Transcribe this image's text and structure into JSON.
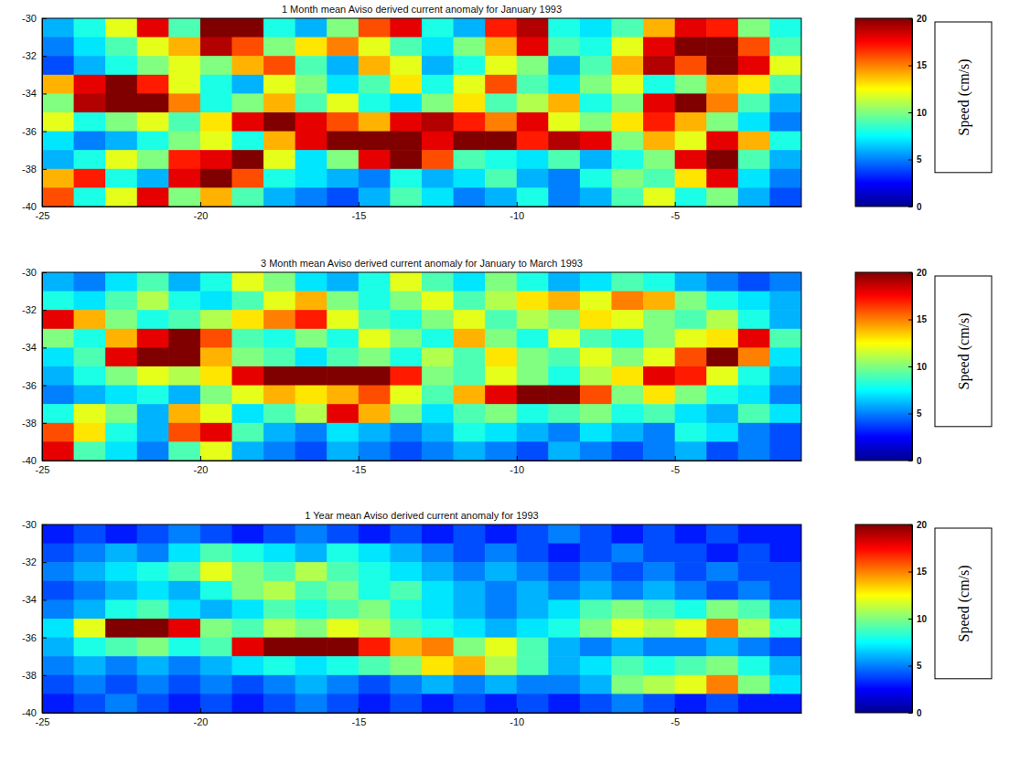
{
  "chart_data": [
    {
      "type": "heatmap",
      "title": "1 Month mean Aviso derived current anomaly for January 1993",
      "x": [
        -24.5,
        -23.5,
        -22.5,
        -21.5,
        -20.5,
        -19.5,
        -18.5,
        -17.5,
        -16.5,
        -15.5,
        -14.5,
        -13.5,
        -12.5,
        -11.5,
        -10.5,
        -9.5,
        -8.5,
        -7.5,
        -6.5,
        -5.5,
        -4.5,
        -3.5,
        -2.5,
        -1.5
      ],
      "y": [
        -30.5,
        -31.5,
        -32.5,
        -33.5,
        -34.5,
        -35.5,
        -36.5,
        -37.5,
        -38.5,
        -39.5
      ],
      "values": [
        [
          6,
          8,
          12,
          18,
          9,
          20,
          20,
          8,
          6,
          10,
          16,
          18,
          8,
          6,
          17,
          19,
          8,
          7,
          9,
          14,
          18,
          17,
          10,
          8
        ],
        [
          5,
          7,
          9,
          12,
          14,
          19,
          16,
          10,
          13,
          15,
          12,
          9,
          7,
          10,
          14,
          18,
          9,
          8,
          12,
          18,
          20,
          20,
          16,
          9
        ],
        [
          4,
          6,
          8,
          10,
          12,
          10,
          14,
          16,
          9,
          6,
          14,
          12,
          6,
          8,
          12,
          10,
          6,
          9,
          14,
          19,
          16,
          20,
          18,
          12
        ],
        [
          14,
          18,
          20,
          17,
          12,
          8,
          6,
          12,
          10,
          7,
          9,
          13,
          8,
          12,
          16,
          9,
          7,
          10,
          12,
          8,
          10,
          14,
          13,
          9
        ],
        [
          10,
          19,
          20,
          20,
          15,
          8,
          10,
          14,
          9,
          12,
          8,
          7,
          10,
          13,
          9,
          11,
          14,
          8,
          10,
          18,
          20,
          15,
          9,
          6
        ],
        [
          12,
          8,
          10,
          12,
          9,
          13,
          18,
          20,
          18,
          16,
          14,
          18,
          19,
          17,
          15,
          18,
          12,
          10,
          13,
          17,
          14,
          10,
          7,
          5
        ],
        [
          7,
          5,
          6,
          8,
          10,
          12,
          8,
          14,
          18,
          20,
          20,
          20,
          18,
          20,
          20,
          17,
          19,
          18,
          10,
          14,
          12,
          18,
          14,
          8
        ],
        [
          6,
          8,
          12,
          10,
          17,
          18,
          20,
          12,
          7,
          10,
          18,
          20,
          16,
          9,
          8,
          7,
          9,
          6,
          8,
          10,
          18,
          20,
          9,
          6
        ],
        [
          14,
          17,
          8,
          6,
          18,
          20,
          16,
          8,
          7,
          6,
          5,
          8,
          6,
          7,
          9,
          6,
          5,
          8,
          10,
          9,
          13,
          18,
          7,
          5
        ],
        [
          16,
          8,
          12,
          18,
          10,
          14,
          9,
          6,
          5,
          4,
          6,
          9,
          7,
          5,
          6,
          8,
          5,
          6,
          9,
          12,
          8,
          10,
          6,
          4
        ]
      ],
      "xlim": [
        -25,
        -1
      ],
      "ylim": [
        -40,
        -30
      ],
      "xticks": [
        -25,
        -20,
        -15,
        -10,
        -5
      ],
      "yticks": [
        -40,
        -38,
        -36,
        -34,
        -32,
        -30
      ],
      "zlim": [
        0,
        20
      ],
      "zticks": [
        0,
        5,
        10,
        15,
        20
      ],
      "zlabel": "Speed (cm/s)"
    },
    {
      "type": "heatmap",
      "title": "3 Month mean Aviso derived current anomaly for January to March 1993",
      "x": [
        -24.5,
        -23.5,
        -22.5,
        -21.5,
        -20.5,
        -19.5,
        -18.5,
        -17.5,
        -16.5,
        -15.5,
        -14.5,
        -13.5,
        -12.5,
        -11.5,
        -10.5,
        -9.5,
        -8.5,
        -7.5,
        -6.5,
        -5.5,
        -4.5,
        -3.5,
        -2.5,
        -1.5
      ],
      "y": [
        -30.5,
        -31.5,
        -32.5,
        -33.5,
        -34.5,
        -35.5,
        -36.5,
        -37.5,
        -38.5,
        -39.5
      ],
      "values": [
        [
          6,
          5,
          7,
          9,
          6,
          8,
          12,
          10,
          7,
          6,
          8,
          12,
          9,
          7,
          10,
          8,
          6,
          7,
          9,
          8,
          6,
          5,
          4,
          5
        ],
        [
          8,
          7,
          9,
          11,
          8,
          7,
          9,
          12,
          14,
          10,
          8,
          10,
          12,
          9,
          11,
          13,
          14,
          12,
          15,
          14,
          10,
          8,
          7,
          6
        ],
        [
          18,
          14,
          10,
          8,
          9,
          11,
          13,
          15,
          17,
          12,
          9,
          8,
          10,
          12,
          9,
          11,
          10,
          13,
          12,
          10,
          9,
          11,
          8,
          6
        ],
        [
          10,
          8,
          14,
          18,
          20,
          16,
          9,
          8,
          10,
          8,
          12,
          10,
          8,
          14,
          10,
          8,
          12,
          9,
          8,
          10,
          12,
          13,
          18,
          9
        ],
        [
          7,
          9,
          18,
          20,
          20,
          14,
          10,
          9,
          7,
          9,
          10,
          8,
          11,
          9,
          13,
          10,
          9,
          12,
          10,
          12,
          16,
          20,
          15,
          7
        ],
        [
          6,
          8,
          10,
          12,
          11,
          13,
          18,
          20,
          20,
          20,
          20,
          17,
          10,
          9,
          12,
          10,
          8,
          11,
          13,
          18,
          17,
          12,
          8,
          6
        ],
        [
          5,
          6,
          7,
          8,
          6,
          10,
          12,
          14,
          13,
          14,
          16,
          12,
          9,
          14,
          18,
          20,
          20,
          16,
          10,
          13,
          10,
          8,
          7,
          5
        ],
        [
          8,
          12,
          10,
          6,
          14,
          12,
          7,
          9,
          11,
          18,
          14,
          10,
          7,
          9,
          10,
          8,
          9,
          10,
          8,
          9,
          7,
          6,
          9,
          7
        ],
        [
          16,
          13,
          8,
          6,
          16,
          18,
          9,
          6,
          5,
          7,
          6,
          5,
          6,
          8,
          7,
          6,
          5,
          7,
          6,
          5,
          8,
          7,
          5,
          4
        ],
        [
          18,
          9,
          7,
          5,
          9,
          12,
          6,
          5,
          4,
          6,
          5,
          4,
          5,
          6,
          5,
          4,
          6,
          5,
          4,
          5,
          6,
          4,
          5,
          4
        ]
      ],
      "xlim": [
        -25,
        -1
      ],
      "ylim": [
        -40,
        -30
      ],
      "xticks": [
        -25,
        -20,
        -15,
        -10,
        -5
      ],
      "yticks": [
        -40,
        -38,
        -36,
        -34,
        -32,
        -30
      ],
      "zlim": [
        0,
        20
      ],
      "zticks": [
        0,
        5,
        10,
        15,
        20
      ],
      "zlabel": "Speed (cm/s)"
    },
    {
      "type": "heatmap",
      "title": "1 Year mean Aviso derived current anomaly for 1993",
      "x": [
        -24.5,
        -23.5,
        -22.5,
        -21.5,
        -20.5,
        -19.5,
        -18.5,
        -17.5,
        -16.5,
        -15.5,
        -14.5,
        -13.5,
        -12.5,
        -11.5,
        -10.5,
        -9.5,
        -8.5,
        -7.5,
        -6.5,
        -5.5,
        -4.5,
        -3.5,
        -2.5,
        -1.5
      ],
      "y": [
        -30.5,
        -31.5,
        -32.5,
        -33.5,
        -34.5,
        -35.5,
        -36.5,
        -37.5,
        -38.5,
        -39.5
      ],
      "values": [
        [
          3,
          4,
          3,
          4,
          5,
          4,
          3,
          4,
          5,
          4,
          3,
          4,
          3,
          4,
          3,
          4,
          5,
          4,
          3,
          4,
          3,
          4,
          3,
          3
        ],
        [
          4,
          5,
          6,
          5,
          7,
          9,
          8,
          7,
          6,
          8,
          7,
          6,
          5,
          4,
          5,
          4,
          3,
          4,
          5,
          4,
          4,
          3,
          4,
          3
        ],
        [
          5,
          6,
          7,
          8,
          9,
          12,
          10,
          9,
          11,
          9,
          8,
          7,
          6,
          5,
          6,
          5,
          4,
          5,
          4,
          5,
          4,
          5,
          4,
          4
        ],
        [
          4,
          5,
          6,
          7,
          6,
          8,
          10,
          11,
          9,
          10,
          8,
          9,
          7,
          6,
          5,
          6,
          5,
          6,
          5,
          6,
          5,
          4,
          5,
          4
        ],
        [
          5,
          6,
          8,
          9,
          7,
          6,
          7,
          9,
          8,
          9,
          10,
          8,
          7,
          6,
          5,
          6,
          7,
          9,
          10,
          9,
          8,
          10,
          9,
          6
        ],
        [
          7,
          12,
          20,
          20,
          18,
          10,
          9,
          11,
          10,
          12,
          11,
          9,
          8,
          7,
          6,
          7,
          8,
          10,
          12,
          11,
          12,
          15,
          11,
          8
        ],
        [
          6,
          8,
          9,
          10,
          8,
          9,
          18,
          20,
          20,
          20,
          17,
          14,
          15,
          10,
          12,
          9,
          6,
          5,
          6,
          5,
          5,
          6,
          5,
          4
        ],
        [
          5,
          6,
          5,
          6,
          5,
          6,
          7,
          8,
          7,
          8,
          9,
          10,
          13,
          14,
          11,
          9,
          6,
          7,
          9,
          8,
          9,
          10,
          8,
          6
        ],
        [
          4,
          5,
          4,
          5,
          4,
          5,
          4,
          5,
          6,
          5,
          4,
          5,
          6,
          5,
          6,
          5,
          5,
          6,
          10,
          11,
          12,
          15,
          10,
          7
        ],
        [
          3,
          4,
          5,
          4,
          3,
          4,
          3,
          4,
          5,
          4,
          3,
          4,
          3,
          4,
          3,
          4,
          3,
          4,
          5,
          4,
          3,
          4,
          3,
          3
        ]
      ],
      "xlim": [
        -25,
        -1
      ],
      "ylim": [
        -40,
        -30
      ],
      "xticks": [
        -25,
        -20,
        -15,
        -10,
        -5
      ],
      "yticks": [
        -40,
        -38,
        -36,
        -34,
        -32,
        -30
      ],
      "zlim": [
        0,
        20
      ],
      "zticks": [
        0,
        5,
        10,
        15,
        20
      ],
      "zlabel": "Speed (cm/s)"
    }
  ]
}
